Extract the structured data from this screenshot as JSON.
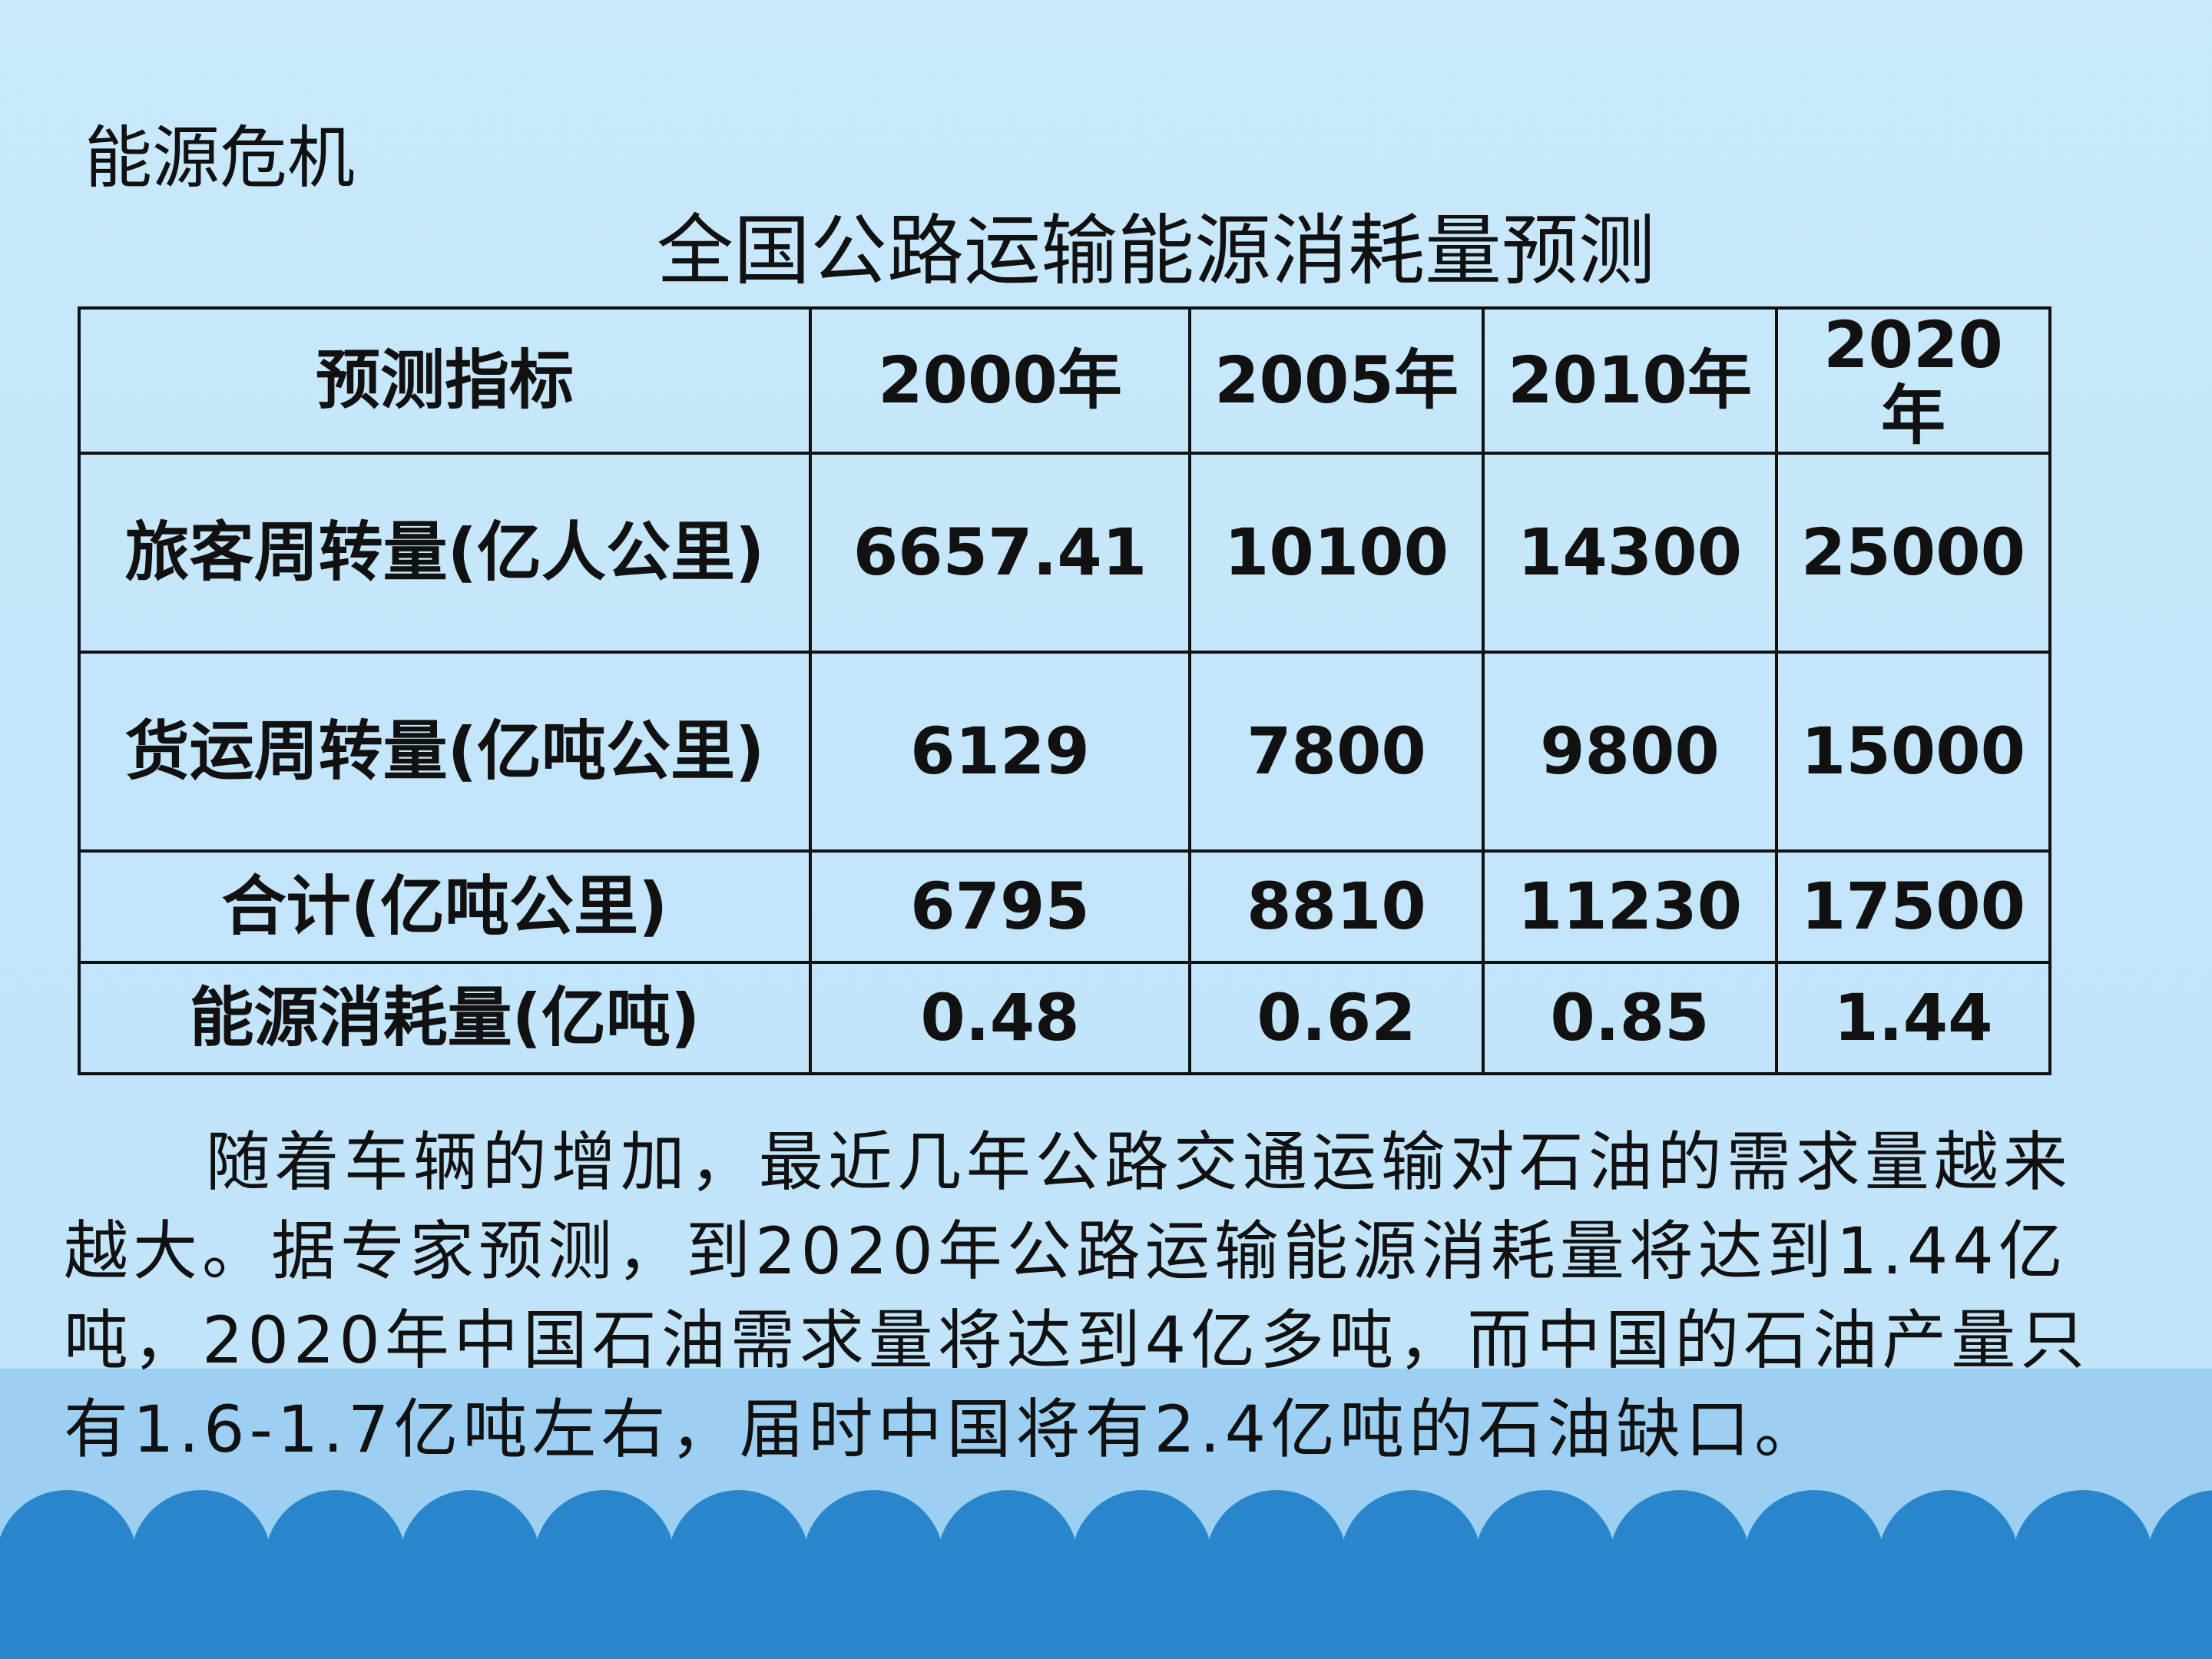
{
  "header": {
    "title": "能源危机"
  },
  "table": {
    "title": "全国公路运输能源消耗量预测",
    "columns": [
      "预测指标",
      "2000年",
      "2005年",
      "2010年",
      "2020年"
    ],
    "rows": [
      [
        "旅客周转量(亿人公里)",
        "6657.41",
        "10100",
        "14300",
        "25000"
      ],
      [
        "货运周转量(亿吨公里)",
        "6129",
        "7800",
        "9800",
        "15000"
      ],
      [
        "合计(亿吨公里)",
        "6795",
        "8810",
        "11230",
        "17500"
      ],
      [
        "能源消耗量(亿吨)",
        "0.48",
        "0.62",
        "0.85",
        "1.44"
      ]
    ]
  },
  "paragraph": "随着车辆的增加，最近几年公路交通运输对石油的需求量越来越大。据专家预测，到2020年公路运输能源消耗量将达到1.44亿吨，2020年中国石油需求量将达到4亿多吨，而中国的石油产量只有1.6-1.7亿吨左右，届时中国将有2.4亿吨的石油缺口。"
}
